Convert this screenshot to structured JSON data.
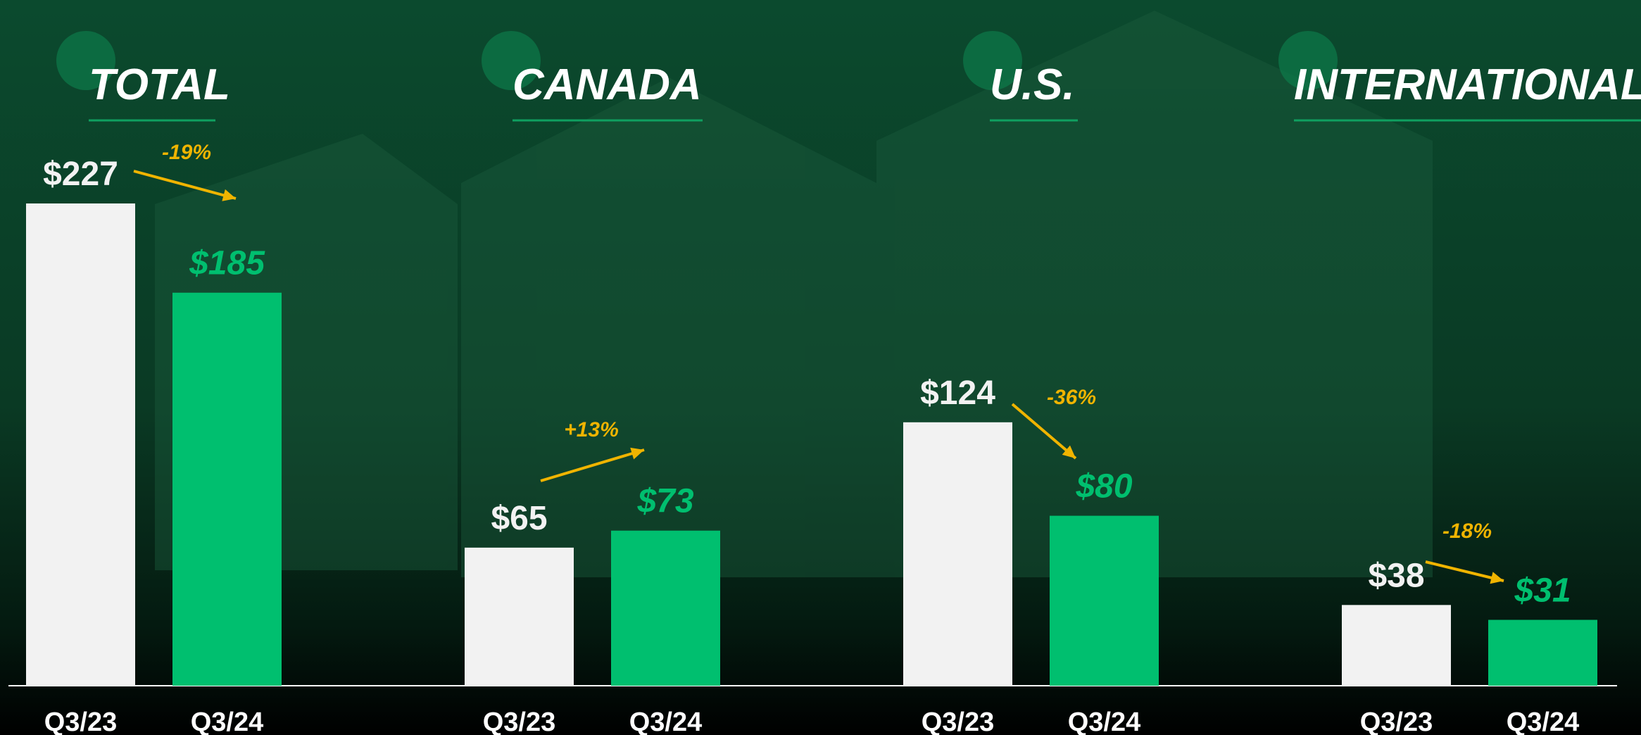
{
  "chart_data": {
    "type": "bar",
    "categories": [
      "TOTAL",
      "CANADA",
      "U.S.",
      "INTERNATIONAL"
    ],
    "series": [
      {
        "name": "Q3/23",
        "color": "#f2f2f2",
        "values": [
          227,
          65,
          124,
          38
        ],
        "value_labels": [
          "$227",
          "$65",
          "$124",
          "$38"
        ]
      },
      {
        "name": "Q3/24",
        "color": "#00bf6f",
        "values": [
          185,
          73,
          80,
          31
        ],
        "value_labels": [
          "$185",
          "$73",
          "$80",
          "$31"
        ]
      }
    ],
    "annotations": [
      "-19%",
      "+13%",
      "-36%",
      "-18%"
    ],
    "annotation_color": "#f0b400"
  }
}
